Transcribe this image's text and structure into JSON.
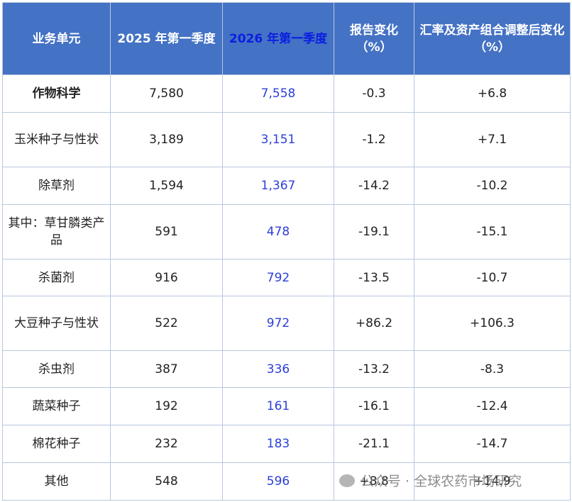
{
  "table": {
    "header": [
      "业务单元",
      "2025 年第一季度",
      "2026 年第一季度",
      "报告变化（%）",
      "汇率及资产组合调整后变化（%）"
    ],
    "rows": [
      [
        "作物科学",
        "7,580",
        "7,558",
        "-0.3",
        "+6.8"
      ],
      [
        "玉米种子与性状",
        "3,189",
        "3,151",
        "-1.2",
        "+7.1"
      ],
      [
        "除草剂",
        "1,594",
        "1,367",
        "-14.2",
        "-10.2"
      ],
      [
        "其中：草甘膦类产品",
        "591",
        "478",
        "-19.1",
        "-15.1"
      ],
      [
        "杀菌剂",
        "916",
        "792",
        "-13.5",
        "-10.7"
      ],
      [
        "大豆种子与性状",
        "522",
        "972",
        "+86.2",
        "+106.3"
      ],
      [
        "杀虫剂",
        "387",
        "336",
        "-13.2",
        "-8.3"
      ],
      [
        "蔬菜种子",
        "192",
        "161",
        "-16.1",
        "-12.4"
      ],
      [
        "棉花种子",
        "232",
        "183",
        "-21.1",
        "-14.7"
      ],
      [
        "其他",
        "548",
        "596",
        "+8.8",
        "+14.9"
      ]
    ]
  },
  "watermark": "公众号 · 全球农药市场研究"
}
